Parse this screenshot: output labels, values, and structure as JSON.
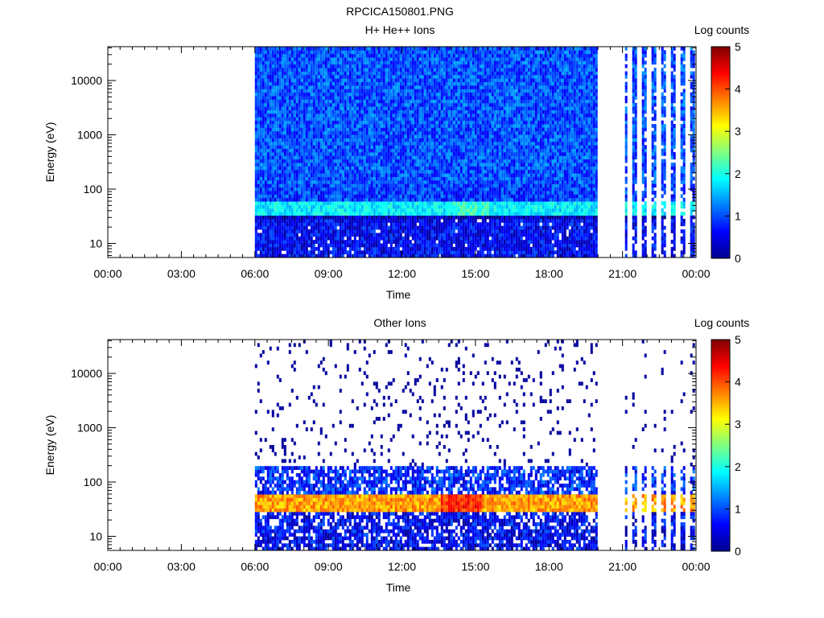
{
  "figure": {
    "title": "RPCICA150801.PNG"
  },
  "chart_data": [
    {
      "type": "heatmap",
      "title": "H+ He++ Ions",
      "xlabel": "Time",
      "ylabel": "Energy (eV)",
      "x_ticks": [
        "00:00",
        "03:00",
        "06:00",
        "09:00",
        "12:00",
        "15:00",
        "18:00",
        "21:00",
        "00:00"
      ],
      "x_range_hours": [
        0,
        24
      ],
      "y_scale": "log",
      "y_ticks": [
        "10",
        "100",
        "1000",
        "10000"
      ],
      "y_range": [
        5.5,
        42000
      ],
      "colorbar": {
        "label": "Log counts",
        "ticks": [
          "0",
          "1",
          "2",
          "3",
          "4",
          "5"
        ],
        "range": [
          0,
          5
        ],
        "colormap": "jet"
      },
      "coverage_hours": [
        [
          6.0,
          19.9
        ],
        [
          21.1,
          23.9
        ]
      ],
      "coverage_note": "continuous 06:00–19:55; intermittent narrow stripes 21:00–24:00",
      "features": [
        {
          "energy_ev": [
            35,
            60
          ],
          "log_counts": 1.8,
          "description": "enhanced band"
        },
        {
          "energy_ev": [
            5.5,
            30
          ],
          "log_counts": 0.6
        },
        {
          "energy_ev": [
            60,
            120
          ],
          "log_counts": 0.9
        },
        {
          "energy_ev": [
            120,
            42000
          ],
          "log_counts": 1.0
        }
      ]
    },
    {
      "type": "heatmap",
      "title": "Other Ions",
      "xlabel": "Time",
      "ylabel": "Energy (eV)",
      "x_ticks": [
        "00:00",
        "03:00",
        "06:00",
        "09:00",
        "12:00",
        "15:00",
        "18:00",
        "21:00",
        "00:00"
      ],
      "x_range_hours": [
        0,
        24
      ],
      "y_scale": "log",
      "y_ticks": [
        "10",
        "100",
        "1000",
        "10000"
      ],
      "y_range": [
        5.5,
        42000
      ],
      "colorbar": {
        "label": "Log counts",
        "ticks": [
          "0",
          "1",
          "2",
          "3",
          "4",
          "5"
        ],
        "range": [
          0,
          5
        ],
        "colormap": "jet"
      },
      "coverage_hours": [
        [
          6.0,
          19.9
        ],
        [
          21.1,
          23.9
        ]
      ],
      "features": [
        {
          "energy_ev": [
            30,
            60
          ],
          "log_counts": 3.6,
          "description": "strong band, peaks ~4.2 near 14:00–15:00"
        },
        {
          "energy_ev": [
            60,
            210
          ],
          "log_counts": 0.8
        },
        {
          "energy_ev": [
            5.5,
            30
          ],
          "log_counts": 0.6
        },
        {
          "energy_ev": [
            210,
            42000
          ],
          "log_counts": 0.1,
          "description": "sparse single counts"
        }
      ]
    }
  ]
}
